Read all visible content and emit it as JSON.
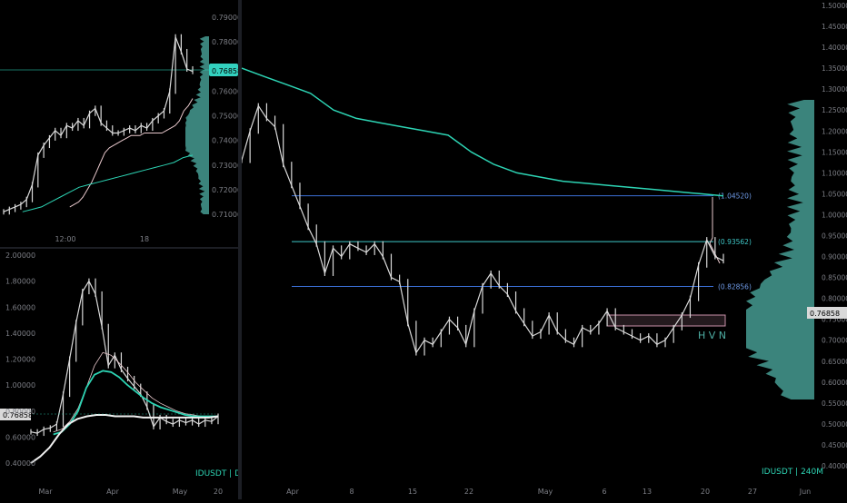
{
  "colors": {
    "background": "#000000",
    "axis_text": "#7d7f86",
    "candle": "#d9d9d9",
    "teal": "#2dd4b4",
    "volume_profile": "#4fb0a6",
    "fib_line": "#3b6fd6",
    "fib_line_mid": "#3fc8c8",
    "hvn_box": "#c890a8",
    "price_tag_bg": "#33d1bf",
    "white_ma": "#f0f0f0",
    "pink_ma": "#e8c8cc"
  },
  "top_left": {
    "price_tag": "0.76858",
    "y_labels": [
      "0.79000",
      "0.78000",
      "0.77000",
      "0.76000",
      "0.75000",
      "0.74000",
      "0.73000",
      "0.72000",
      "0.71000"
    ],
    "x_labels": [
      "12:00",
      "18"
    ]
  },
  "bottom_left": {
    "price_tag": "0.76858",
    "y_labels": [
      "2.00000",
      "1.80000",
      "1.60000",
      "1.40000",
      "1.20000",
      "1.00000",
      "0.80000",
      "0.60000",
      "0.40000"
    ],
    "x_labels": [
      "Mar",
      "Apr",
      "May",
      "20"
    ],
    "symbol_label": "IDUSDT | D"
  },
  "main": {
    "price_tag": "0.76858",
    "y_labels": [
      "1.50000",
      "1.45000",
      "1.40000",
      "1.35000",
      "1.30000",
      "1.25000",
      "1.20000",
      "1.15000",
      "1.10000",
      "1.05000",
      "1.00000",
      "0.95000",
      "0.90000",
      "0.85000",
      "0.80000",
      "0.75000",
      "0.70000",
      "0.65000",
      "0.60000",
      "0.55000",
      "0.50000",
      "0.45000",
      "0.40000"
    ],
    "x_labels": [
      "Apr",
      "8",
      "15",
      "22",
      "May",
      "6",
      "13",
      "20",
      "27",
      "Jun"
    ],
    "fib_labels": [
      "(1.04520)",
      "(0.93562)",
      "(0.82856)"
    ],
    "hvn_label": "H V N",
    "symbol_label": "IDUSDT | 240M"
  },
  "chart_data": [
    {
      "type": "line",
      "panel": "top-left",
      "x_axis_ticks": [
        "12:00",
        "18"
      ],
      "ylim": [
        0.705,
        0.792
      ],
      "last_price": 0.76858,
      "series": [
        {
          "values": [
            0.711,
            0.712,
            0.713,
            0.714,
            0.716,
            0.722,
            0.734,
            0.738,
            0.741,
            0.744,
            0.742,
            0.746,
            0.745,
            0.748,
            0.746,
            0.751,
            0.753,
            0.747,
            0.745,
            0.743,
            0.743,
            0.744,
            0.745,
            0.744,
            0.746,
            0.745,
            0.748,
            0.75,
            0.752,
            0.76,
            0.782,
            0.776,
            0.769,
            0.768
          ]
        },
        {
          "values": [
            0.713,
            0.714,
            0.715,
            0.717,
            0.72,
            0.723,
            0.727,
            0.731,
            0.735,
            0.737,
            0.738,
            0.739,
            0.74,
            0.741,
            0.742,
            0.742,
            0.742,
            0.743,
            0.743,
            0.743,
            0.743,
            0.743,
            0.744,
            0.745,
            0.746,
            0.748,
            0.752,
            0.754,
            0.757
          ]
        },
        {
          "values": [
            0.711,
            0.712,
            0.713,
            0.715,
            0.717,
            0.719,
            0.721,
            0.722,
            0.723,
            0.724,
            0.725,
            0.726,
            0.727,
            0.728,
            0.729,
            0.73,
            0.731,
            0.733,
            0.734
          ]
        }
      ]
    },
    {
      "type": "line",
      "panel": "bottom-left",
      "x_axis_ticks": [
        "Mar",
        "Apr",
        "May",
        "20"
      ],
      "ylim": [
        0.36,
        2.02
      ],
      "last_price": 0.76858,
      "series": [
        {
          "values": [
            0.64,
            0.63,
            0.66,
            0.67,
            0.7,
            0.93,
            1.2,
            1.48,
            1.72,
            1.8,
            1.7,
            1.45,
            1.15,
            1.23,
            1.12,
            1.05,
            0.99,
            0.93,
            0.83,
            0.68,
            0.75,
            0.72,
            0.7,
            0.73,
            0.71,
            0.73,
            0.7,
            0.73,
            0.72,
            0.76
          ]
        },
        {
          "values": [
            0.64,
            0.66,
            0.72,
            0.82,
            0.98,
            1.15,
            1.25,
            1.23,
            1.17,
            1.1,
            1.02,
            0.96,
            0.9,
            0.86,
            0.83,
            0.8,
            0.78,
            0.77,
            0.76,
            0.76,
            0.76
          ]
        },
        {
          "values": [
            0.62,
            0.64,
            0.7,
            0.8,
            0.98,
            1.08,
            1.11,
            1.1,
            1.06,
            1.0,
            0.95,
            0.9,
            0.86,
            0.83,
            0.81,
            0.79,
            0.77,
            0.76,
            0.76,
            0.76,
            0.76
          ]
        },
        {
          "values": [
            0.4,
            0.45,
            0.52,
            0.62,
            0.7,
            0.74,
            0.76,
            0.77,
            0.77,
            0.76,
            0.76,
            0.76,
            0.75,
            0.75,
            0.75,
            0.75,
            0.75,
            0.75,
            0.75,
            0.75,
            0.76
          ]
        }
      ]
    },
    {
      "type": "line",
      "panel": "main",
      "x_axis_ticks": [
        "Apr",
        "8",
        "15",
        "22",
        "May",
        "6",
        "13",
        "20",
        "27",
        "Jun"
      ],
      "ylim": [
        0.4,
        1.5
      ],
      "last_price": 0.76858,
      "series": [
        {
          "values": [
            1.13,
            1.2,
            1.26,
            1.23,
            1.21,
            1.12,
            1.07,
            1.02,
            0.97,
            0.93,
            0.86,
            0.92,
            0.9,
            0.93,
            0.92,
            0.91,
            0.93,
            0.9,
            0.85,
            0.84,
            0.74,
            0.67,
            0.7,
            0.69,
            0.72,
            0.75,
            0.73,
            0.69,
            0.77,
            0.83,
            0.86,
            0.83,
            0.81,
            0.77,
            0.74,
            0.71,
            0.72,
            0.76,
            0.72,
            0.7,
            0.69,
            0.73,
            0.72,
            0.74,
            0.77,
            0.73,
            0.72,
            0.71,
            0.7,
            0.71,
            0.69,
            0.7,
            0.73,
            0.76,
            0.8,
            0.88,
            0.94,
            0.9,
            0.89
          ]
        },
        {
          "values": [
            1.35,
            1.33,
            1.31,
            1.29,
            1.25,
            1.23,
            1.22,
            1.21,
            1.2,
            1.19,
            1.15,
            1.12,
            1.1,
            1.09,
            1.08,
            1.075,
            1.07,
            1.065,
            1.06,
            1.055,
            1.05,
            1.045
          ]
        }
      ]
    }
  ]
}
